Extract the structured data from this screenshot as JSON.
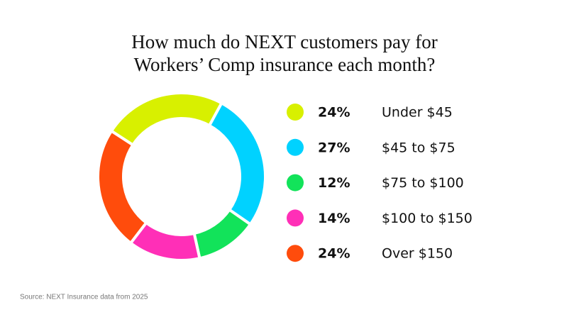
{
  "chart_data": {
    "type": "donut",
    "title": [
      "How much do NEXT customers pay for",
      "Workers’ Comp insurance each month?"
    ],
    "categories": [
      "Under $45",
      "$45 to $75",
      "$75 to $100",
      "$100 to $150",
      "Over $150"
    ],
    "values": [
      24,
      27,
      12,
      14,
      24
    ],
    "value_labels": [
      "24%",
      "27%",
      "12%",
      "14%",
      "24%"
    ],
    "colors": [
      "#d8f000",
      "#00d2ff",
      "#12e35a",
      "#ff2fb7",
      "#ff4c0c"
    ],
    "source": "Source: NEXT Insurance data from 2025"
  }
}
